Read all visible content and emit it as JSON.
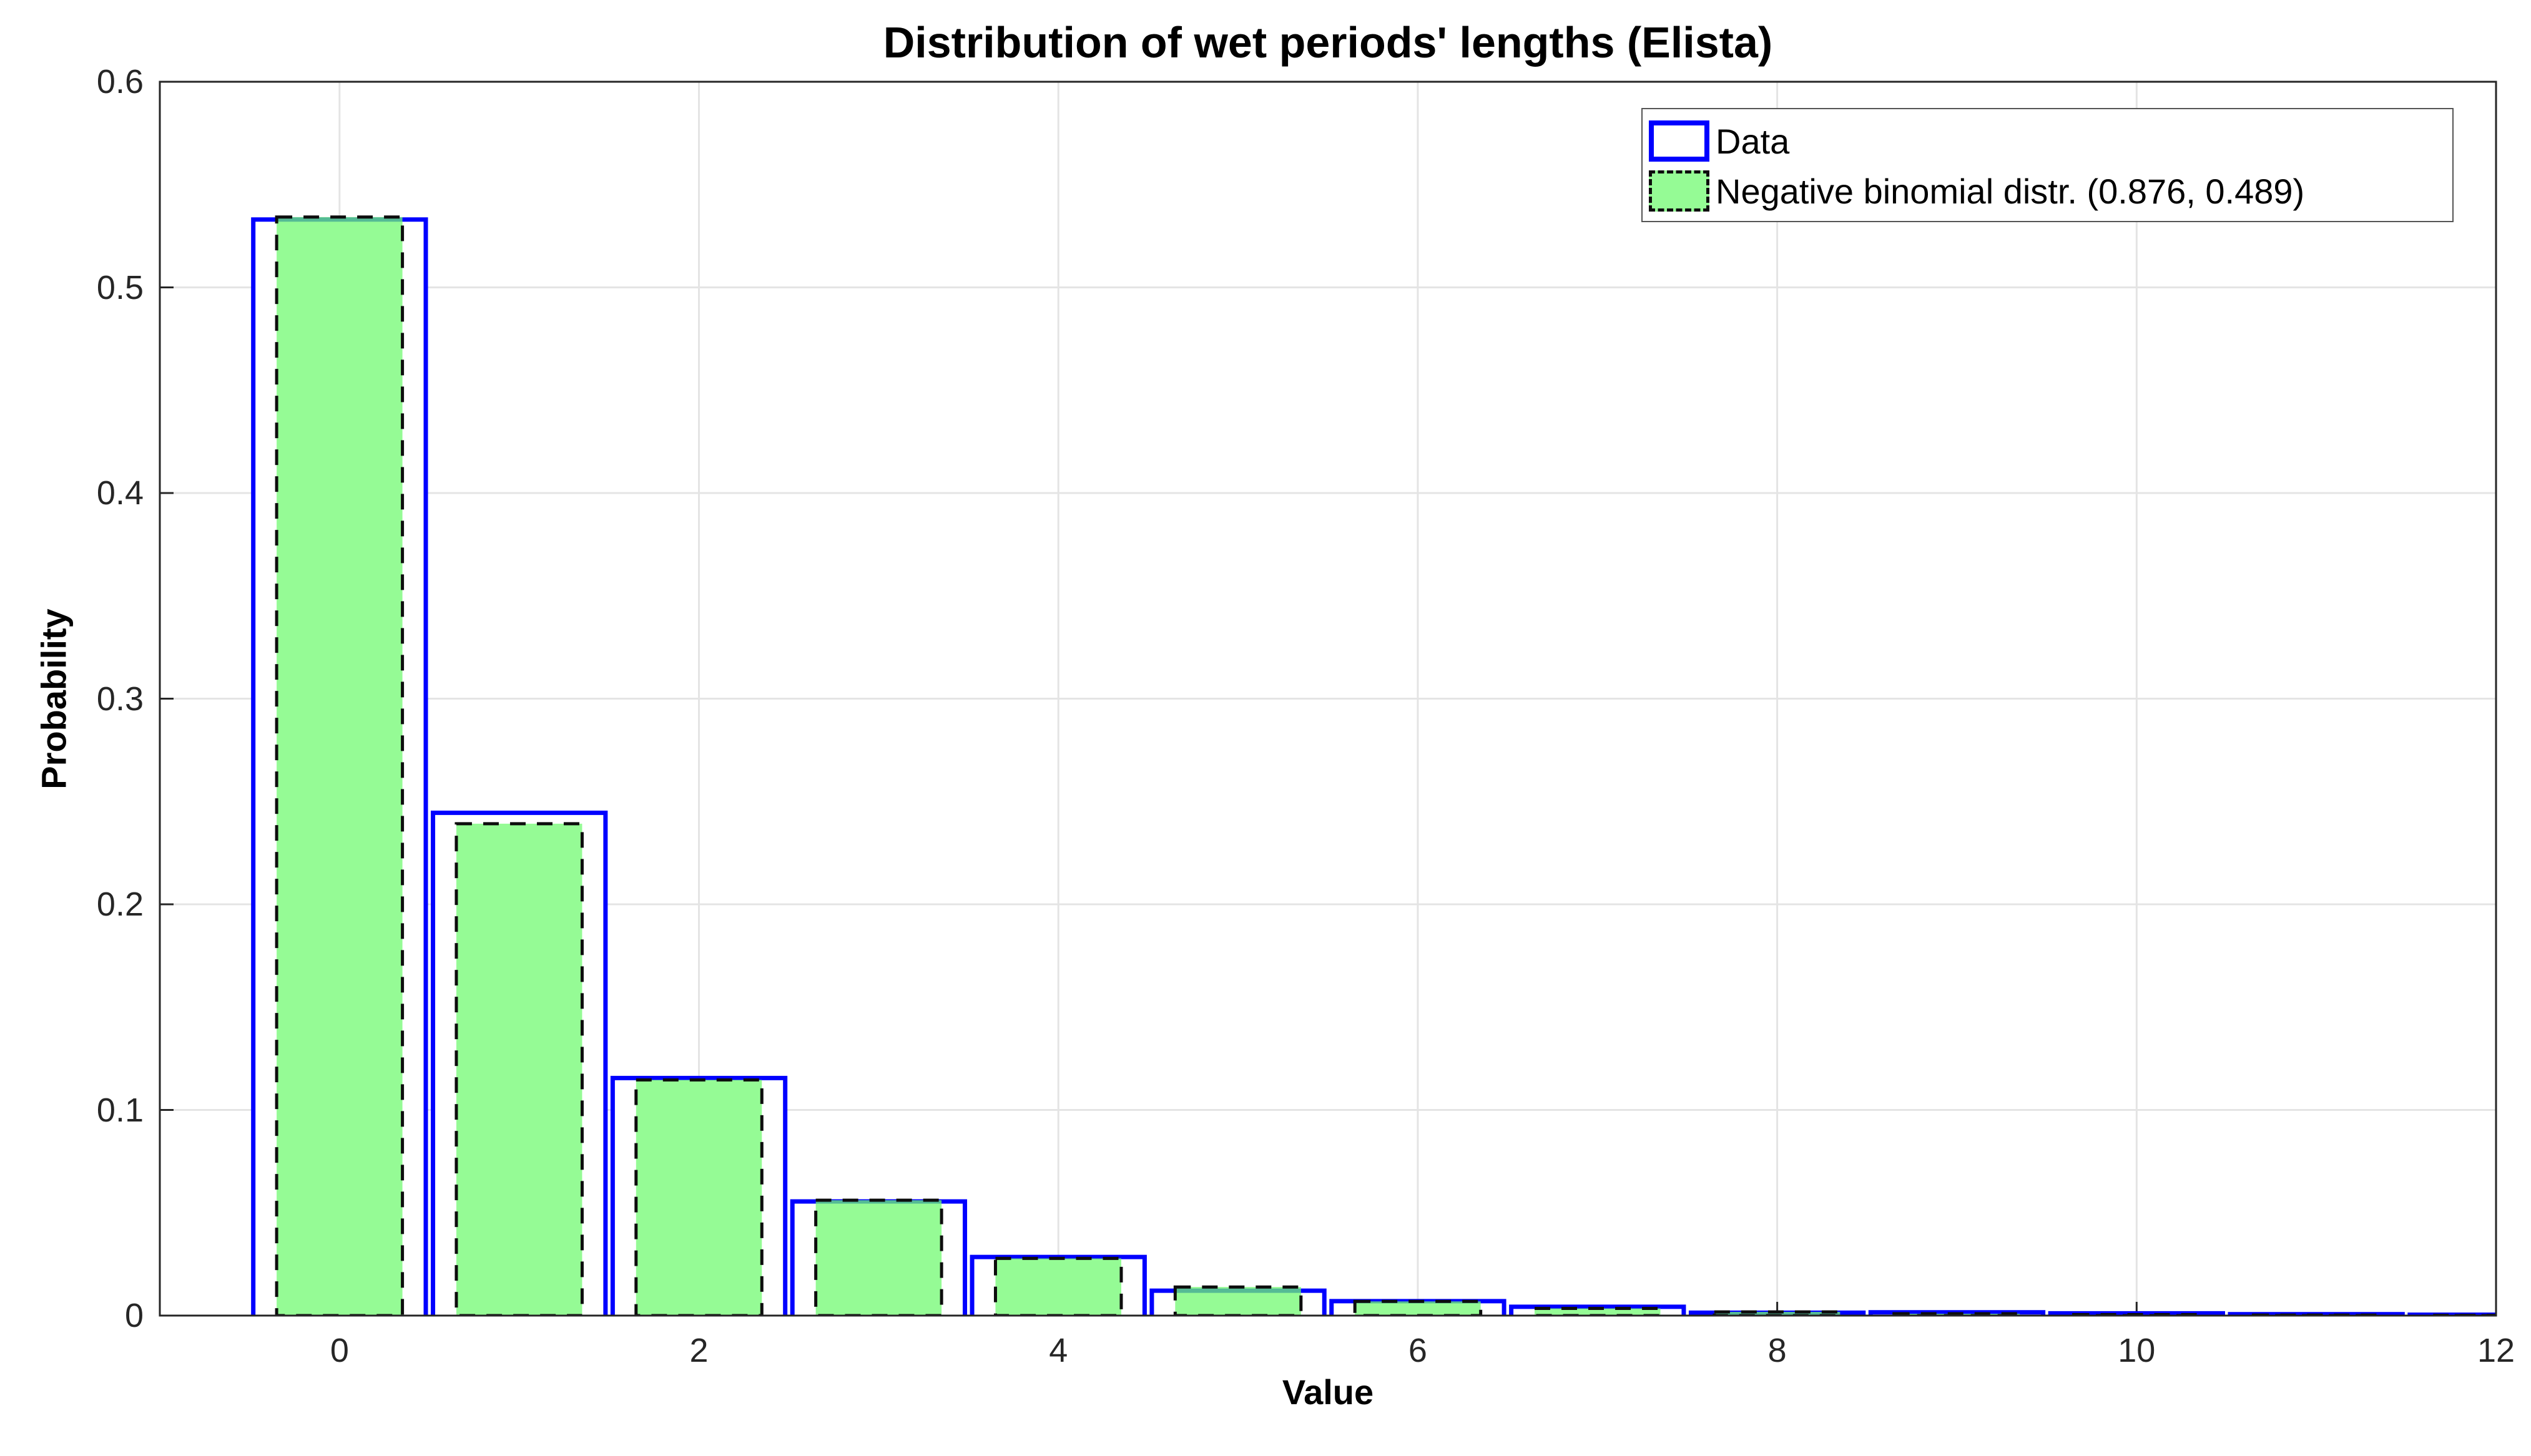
{
  "chart_data": {
    "type": "bar",
    "title": "Distribution of wet periods' lengths (Elista)",
    "xlabel": "Value",
    "ylabel": "Probability",
    "xlim": [
      -1,
      12
    ],
    "ylim": [
      0,
      0.6
    ],
    "grid": true,
    "legend_position": "northeast",
    "categories": [
      0,
      1,
      2,
      3,
      4,
      5,
      6,
      7,
      8,
      9,
      10,
      11,
      12
    ],
    "series": [
      {
        "name": "Data",
        "style": "outlined-bar",
        "edge_color": "#0000ff",
        "fill_color": "#ffffff",
        "bar_width": 0.96,
        "values": [
          0.533,
          0.2445,
          0.1155,
          0.0555,
          0.0285,
          0.0121,
          0.007,
          0.0043,
          0.0014,
          0.0016,
          0.0011,
          0.0007,
          0.0004
        ]
      },
      {
        "name": "Negative binomial distr. (0.876, 0.489)",
        "style": "filled-dashed-bar",
        "edge_color": "#0d0d0d",
        "fill_color": "#72fa72",
        "fill_opacity": 0.75,
        "bar_width": 0.7,
        "params": {
          "r": 0.876,
          "p": 0.489
        },
        "values": [
          0.5342,
          0.2392,
          0.1146,
          0.0561,
          0.0278,
          0.0139,
          0.0069,
          0.0035,
          0.0018,
          0.0009,
          0.00045,
          0.00023,
          0.00012
        ]
      }
    ],
    "x_ticks": {
      "values": [
        0,
        2,
        4,
        6,
        8,
        10,
        12
      ],
      "labels": [
        "0",
        "2",
        "4",
        "6",
        "8",
        "10",
        "12"
      ]
    },
    "y_ticks": {
      "values": [
        0,
        0.1,
        0.2,
        0.3,
        0.4,
        0.5,
        0.6
      ],
      "labels": [
        "0",
        "0.1",
        "0.2",
        "0.3",
        "0.4",
        "0.5",
        "0.6"
      ]
    },
    "colors": {
      "axis": "#262626",
      "grid": "#e4e4e4",
      "tick_label": "#262626",
      "background": "#ffffff"
    },
    "legend": {
      "entries": [
        "Data",
        "Negative binomial distr. (0.876, 0.489)"
      ]
    }
  }
}
